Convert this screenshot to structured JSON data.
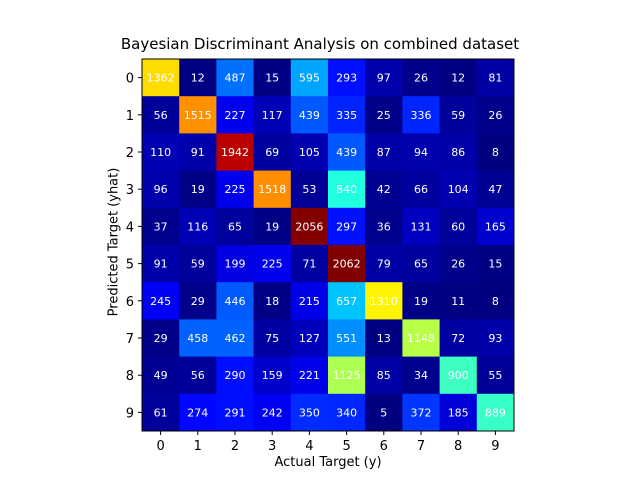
{
  "chart_data": {
    "type": "heatmap",
    "title": "Bayesian Discriminant Analysis on combined dataset",
    "xlabel": "Actual Target (y)",
    "ylabel": "Predicted Target (yhat)",
    "x_categories": [
      "0",
      "1",
      "2",
      "3",
      "4",
      "5",
      "6",
      "7",
      "8",
      "9"
    ],
    "y_categories": [
      "0",
      "1",
      "2",
      "3",
      "4",
      "5",
      "6",
      "7",
      "8",
      "9"
    ],
    "colormap": "jet",
    "matrix": [
      [
        1362,
        12,
        487,
        15,
        595,
        293,
        97,
        26,
        12,
        81
      ],
      [
        56,
        1515,
        227,
        117,
        439,
        335,
        25,
        336,
        59,
        26
      ],
      [
        110,
        91,
        1942,
        69,
        105,
        439,
        87,
        94,
        86,
        8
      ],
      [
        96,
        19,
        225,
        1518,
        53,
        840,
        42,
        66,
        104,
        47
      ],
      [
        37,
        116,
        65,
        19,
        2056,
        297,
        36,
        131,
        60,
        165
      ],
      [
        91,
        59,
        199,
        225,
        71,
        2062,
        79,
        65,
        26,
        15
      ],
      [
        245,
        29,
        446,
        18,
        215,
        657,
        1310,
        19,
        11,
        8
      ],
      [
        29,
        458,
        462,
        75,
        127,
        551,
        13,
        1148,
        72,
        93
      ],
      [
        49,
        56,
        290,
        159,
        221,
        1125,
        85,
        34,
        900,
        55
      ],
      [
        61,
        274,
        291,
        242,
        350,
        340,
        5,
        372,
        185,
        889
      ]
    ]
  }
}
